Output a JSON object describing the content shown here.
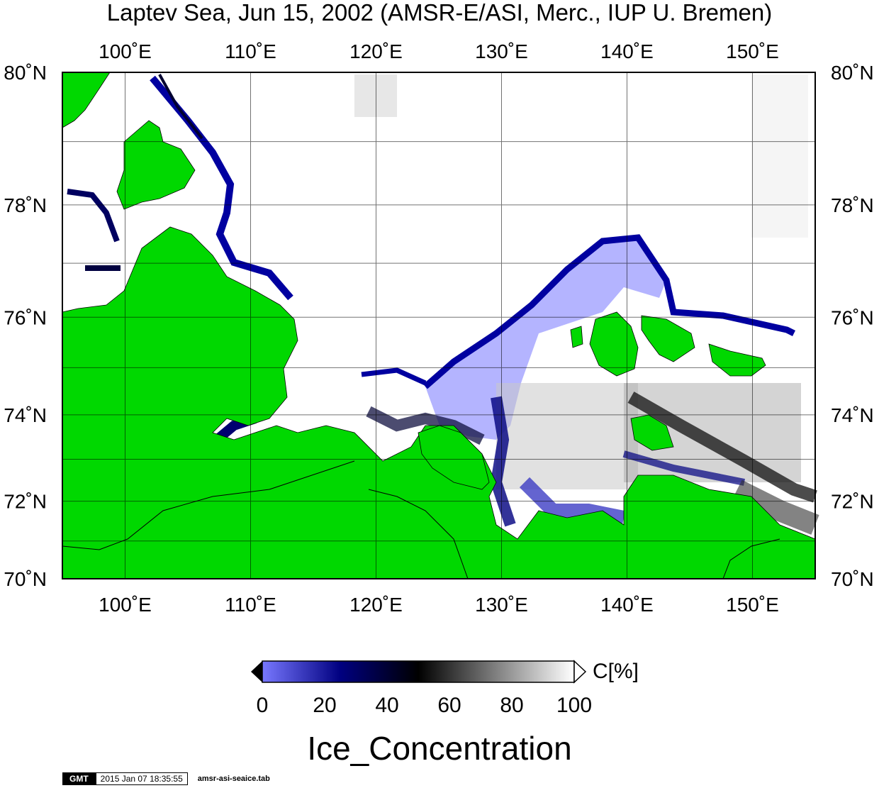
{
  "title": "Laptev Sea, Jun 15, 2002 (AMSR-E/ASI, Merc., IUP U. Bremen)",
  "map": {
    "projection": "Mercator",
    "lon_range": [
      95,
      155
    ],
    "lat_range": [
      70,
      80
    ],
    "lon_ticks": [
      {
        "value": 100,
        "label": "100˚E"
      },
      {
        "value": 110,
        "label": "110˚E"
      },
      {
        "value": 120,
        "label": "120˚E"
      },
      {
        "value": 130,
        "label": "130˚E"
      },
      {
        "value": 140,
        "label": "140˚E"
      },
      {
        "value": 150,
        "label": "150˚E"
      }
    ],
    "lat_ticks": [
      {
        "value": 70,
        "label": "70˚N"
      },
      {
        "value": 72,
        "label": "72˚N"
      },
      {
        "value": 74,
        "label": "74˚N"
      },
      {
        "value": 76,
        "label": "76˚N"
      },
      {
        "value": 78,
        "label": "78˚N"
      },
      {
        "value": 80,
        "label": "80˚N"
      }
    ],
    "grid": true,
    "land_color": "#00d800",
    "ocean_color": "#ffffff",
    "low_concentration_color": "#b4b4ff",
    "marginal_ice_color": "#0000a0"
  },
  "colorbar": {
    "unit": "C[%]",
    "min": 0,
    "max": 100,
    "ticks": [
      "0",
      "20",
      "40",
      "60",
      "80",
      "100"
    ],
    "colors": [
      "#7878ff",
      "#000080",
      "#000000",
      "#808080",
      "#ffffff"
    ]
  },
  "variable_name": "Ice_Concentration",
  "footer": {
    "logo": "GMT",
    "timestamp": "2015 Jan 07 18:35:55",
    "file": "amsr-asi-seaice.tab"
  }
}
